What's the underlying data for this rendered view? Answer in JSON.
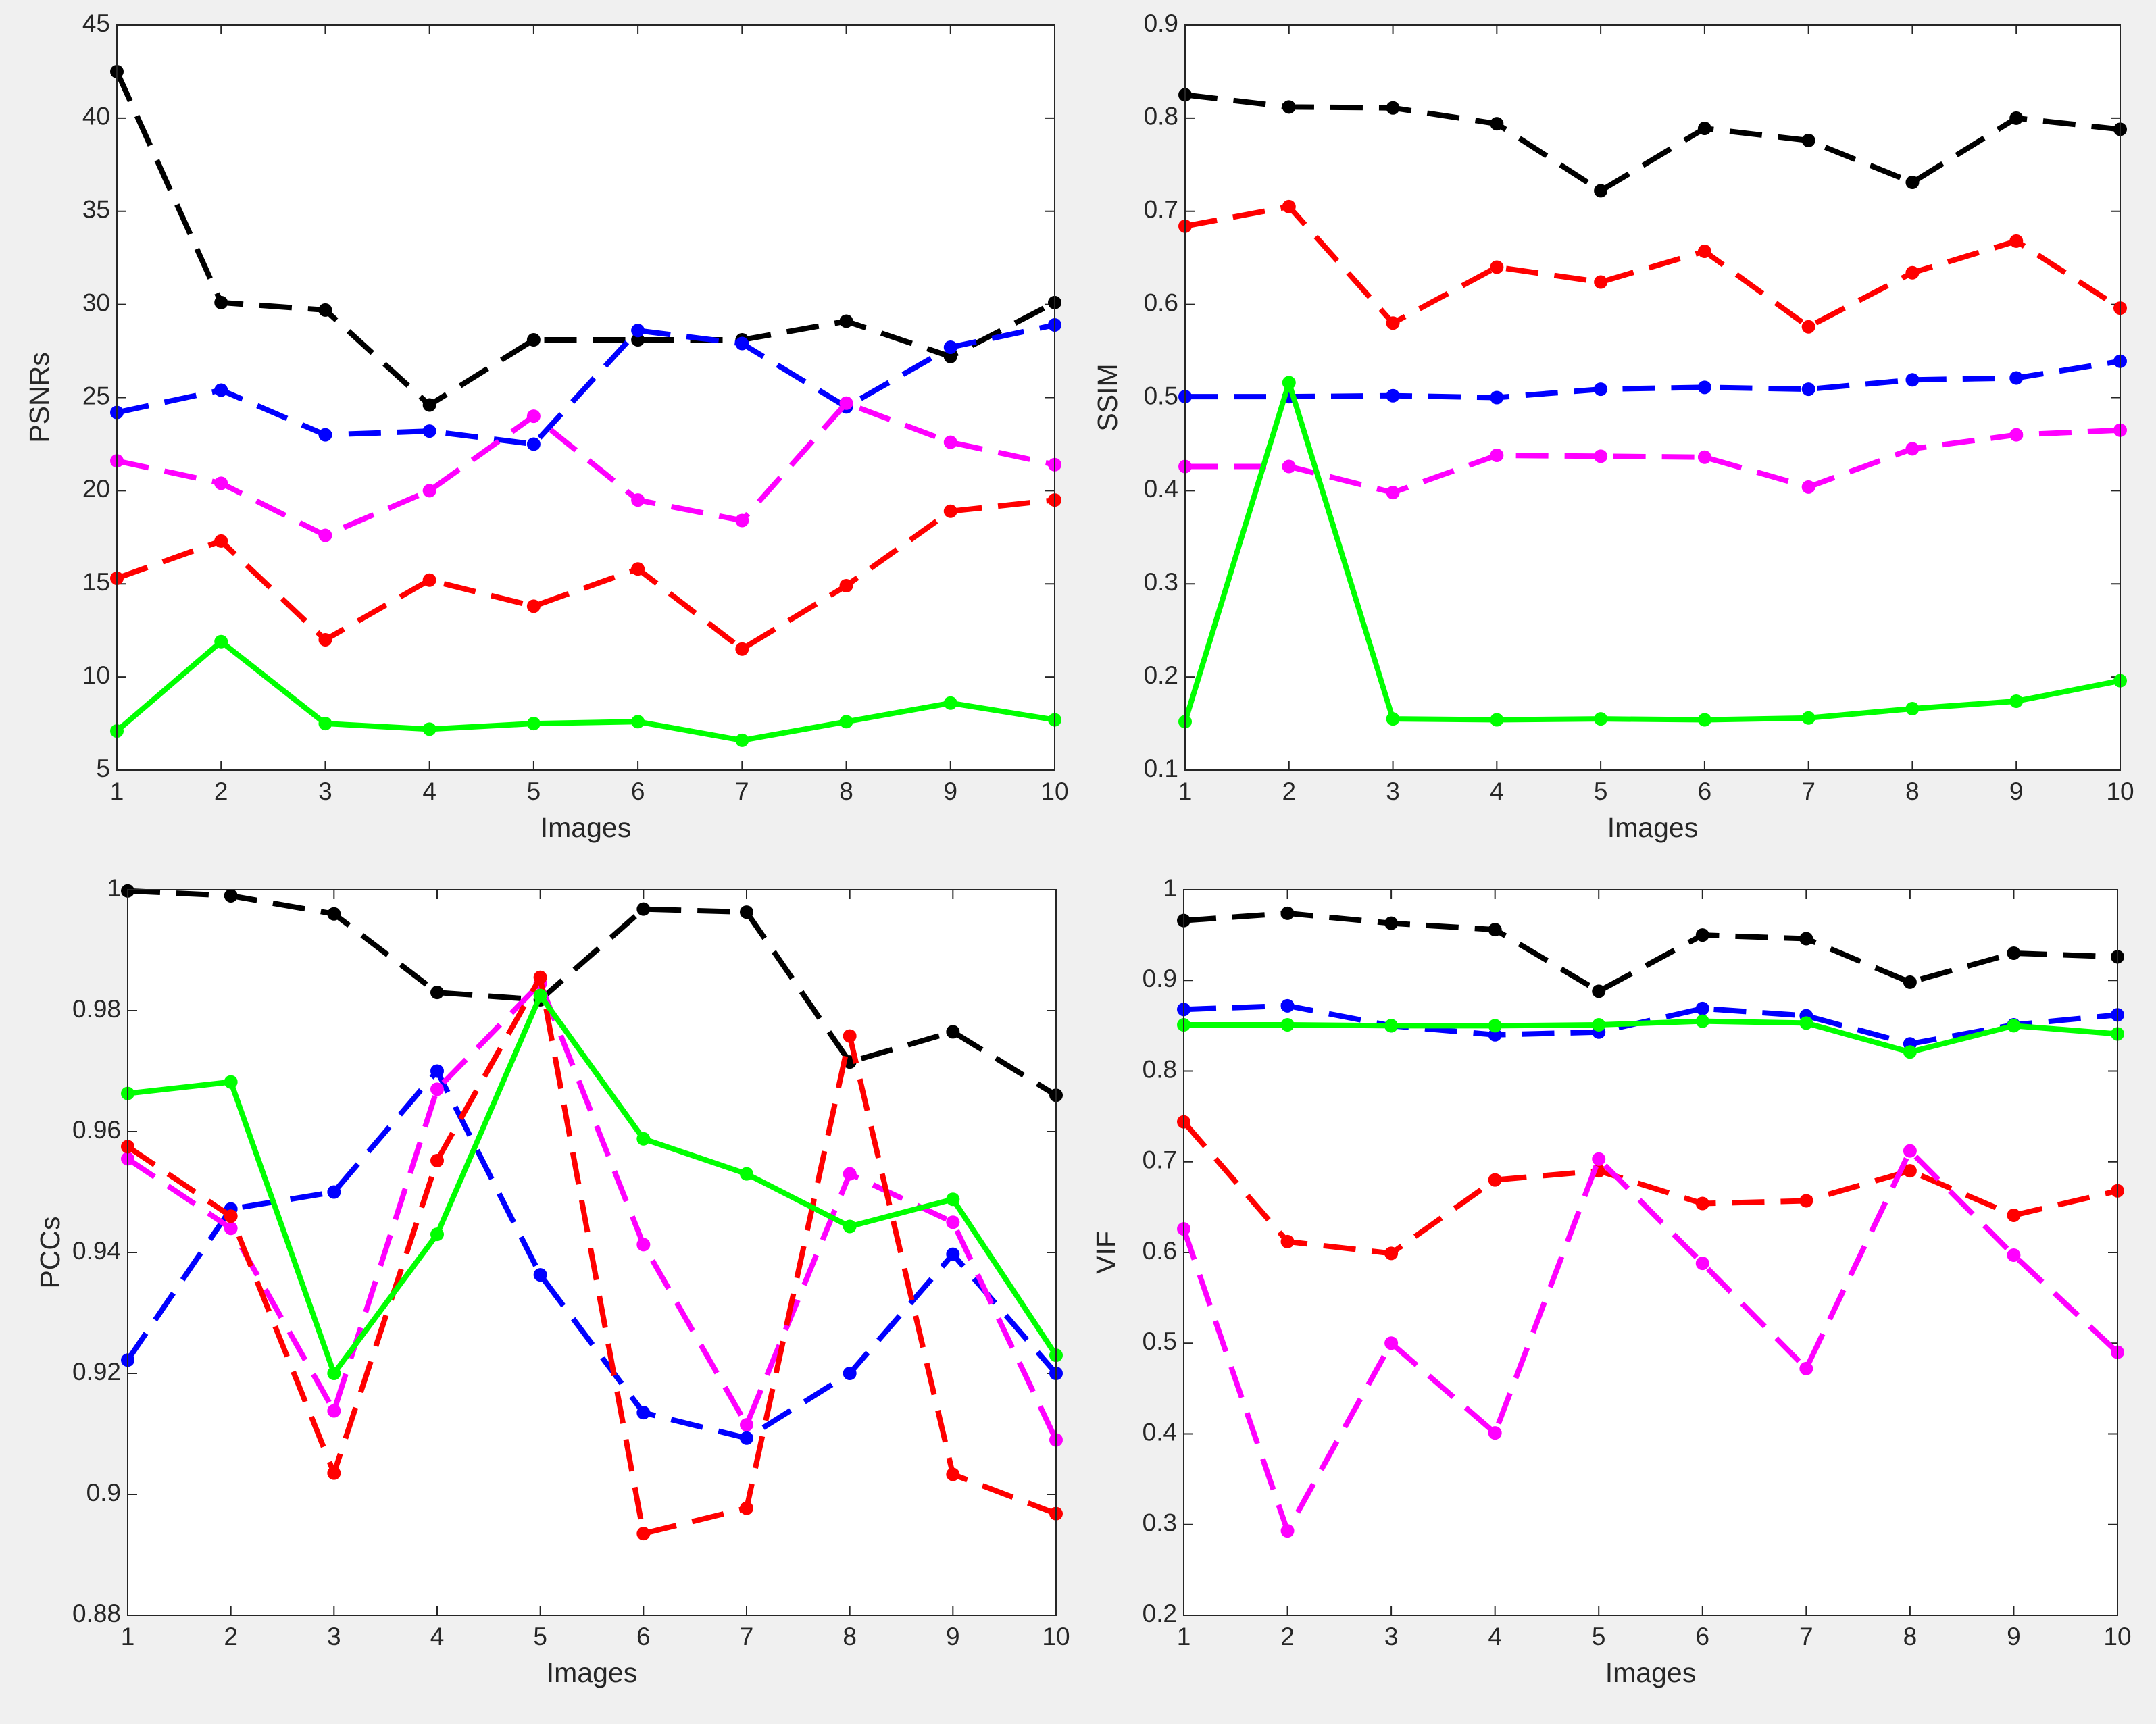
{
  "chart_data": [
    {
      "type": "line",
      "ylabel": "PSNRs",
      "xlabel": "Images",
      "x": [
        1,
        2,
        3,
        4,
        5,
        6,
        7,
        8,
        9,
        10
      ],
      "xlim": [
        1,
        10
      ],
      "xticks": [
        1,
        2,
        3,
        4,
        5,
        6,
        7,
        8,
        9,
        10
      ],
      "ylim": [
        5,
        45
      ],
      "yticks": [
        5,
        10,
        15,
        20,
        25,
        30,
        35,
        40,
        45
      ],
      "series": [
        {
          "color": "#000000",
          "linestyle": "dashed",
          "values": [
            42.5,
            30.1,
            29.7,
            24.6,
            28.1,
            28.1,
            28.1,
            29.1,
            27.2,
            30.1
          ]
        },
        {
          "color": "#0000ff",
          "linestyle": "dashed",
          "values": [
            24.2,
            25.4,
            23.0,
            23.2,
            22.5,
            28.6,
            27.9,
            24.5,
            27.7,
            28.9
          ]
        },
        {
          "color": "#ff00ff",
          "linestyle": "dashed",
          "values": [
            21.6,
            20.4,
            17.6,
            20.0,
            24.0,
            19.5,
            18.4,
            24.7,
            22.6,
            21.4
          ]
        },
        {
          "color": "#ff0000",
          "linestyle": "dashed",
          "values": [
            15.3,
            17.3,
            12.0,
            15.2,
            13.8,
            15.8,
            11.5,
            14.9,
            18.9,
            19.5
          ]
        },
        {
          "color": "#00ff00",
          "linestyle": "solid",
          "values": [
            7.1,
            11.9,
            7.5,
            7.2,
            7.5,
            7.6,
            6.6,
            7.6,
            8.6,
            7.7
          ]
        }
      ]
    },
    {
      "type": "line",
      "ylabel": "SSIM",
      "xlabel": "Images",
      "x": [
        1,
        2,
        3,
        4,
        5,
        6,
        7,
        8,
        9,
        10
      ],
      "xlim": [
        1,
        10
      ],
      "xticks": [
        1,
        2,
        3,
        4,
        5,
        6,
        7,
        8,
        9,
        10
      ],
      "ylim": [
        0.1,
        0.9
      ],
      "yticks": [
        0.1,
        0.2,
        0.3,
        0.4,
        0.5,
        0.6,
        0.7,
        0.8,
        0.9
      ],
      "series": [
        {
          "color": "#000000",
          "linestyle": "dashed",
          "values": [
            0.825,
            0.812,
            0.811,
            0.794,
            0.722,
            0.789,
            0.776,
            0.731,
            0.8,
            0.788
          ]
        },
        {
          "color": "#ff0000",
          "linestyle": "dashed",
          "values": [
            0.684,
            0.705,
            0.58,
            0.64,
            0.624,
            0.657,
            0.576,
            0.634,
            0.668,
            0.596
          ]
        },
        {
          "color": "#0000ff",
          "linestyle": "dashed",
          "values": [
            0.501,
            0.501,
            0.502,
            0.5,
            0.509,
            0.511,
            0.509,
            0.519,
            0.521,
            0.539
          ]
        },
        {
          "color": "#ff00ff",
          "linestyle": "dashed",
          "values": [
            0.426,
            0.426,
            0.398,
            0.438,
            0.437,
            0.436,
            0.404,
            0.445,
            0.46,
            0.465
          ]
        },
        {
          "color": "#00ff00",
          "linestyle": "solid",
          "values": [
            0.152,
            0.516,
            0.155,
            0.154,
            0.155,
            0.154,
            0.156,
            0.166,
            0.174,
            0.196
          ]
        }
      ]
    },
    {
      "type": "line",
      "ylabel": "PCCs",
      "xlabel": "Images",
      "x": [
        1,
        2,
        3,
        4,
        5,
        6,
        7,
        8,
        9,
        10
      ],
      "xlim": [
        1,
        10
      ],
      "xticks": [
        1,
        2,
        3,
        4,
        5,
        6,
        7,
        8,
        9,
        10
      ],
      "ylim": [
        0.88,
        1
      ],
      "yticks": [
        0.88,
        0.9,
        0.92,
        0.94,
        0.96,
        0.98,
        1
      ],
      "series": [
        {
          "color": "#000000",
          "linestyle": "dashed",
          "values": [
            0.9998,
            0.999,
            0.996,
            0.983,
            0.9818,
            0.9968,
            0.9963,
            0.9715,
            0.9765,
            0.966
          ]
        },
        {
          "color": "#0000ff",
          "linestyle": "dashed",
          "values": [
            0.9222,
            0.9472,
            0.95,
            0.97,
            0.9363,
            0.9135,
            0.9093,
            0.92,
            0.9397,
            0.92
          ]
        },
        {
          "color": "#ff00ff",
          "linestyle": "dashed",
          "values": [
            0.9555,
            0.944,
            0.9138,
            0.967,
            0.9845,
            0.9413,
            0.9115,
            0.953,
            0.945,
            0.909
          ]
        },
        {
          "color": "#ff0000",
          "linestyle": "dashed",
          "values": [
            0.9575,
            0.946,
            0.9035,
            0.9552,
            0.9855,
            0.8935,
            0.8977,
            0.9758,
            0.9033,
            0.8968
          ]
        },
        {
          "color": "#00ff00",
          "linestyle": "solid",
          "values": [
            0.9663,
            0.9682,
            0.92,
            0.943,
            0.9825,
            0.9588,
            0.953,
            0.9443,
            0.9488,
            0.923
          ]
        }
      ]
    },
    {
      "type": "line",
      "ylabel": "VIF",
      "xlabel": "Images",
      "x": [
        1,
        2,
        3,
        4,
        5,
        6,
        7,
        8,
        9,
        10
      ],
      "xlim": [
        1,
        10
      ],
      "xticks": [
        1,
        2,
        3,
        4,
        5,
        6,
        7,
        8,
        9,
        10
      ],
      "ylim": [
        0.2,
        1
      ],
      "yticks": [
        0.2,
        0.3,
        0.4,
        0.5,
        0.6,
        0.7,
        0.8,
        0.9,
        1
      ],
      "series": [
        {
          "color": "#000000",
          "linestyle": "dashed",
          "values": [
            0.966,
            0.974,
            0.963,
            0.956,
            0.888,
            0.95,
            0.946,
            0.898,
            0.93,
            0.926
          ]
        },
        {
          "color": "#0000ff",
          "linestyle": "dashed",
          "values": [
            0.868,
            0.872,
            0.85,
            0.84,
            0.843,
            0.869,
            0.861,
            0.83,
            0.851,
            0.862
          ]
        },
        {
          "color": "#00ff00",
          "linestyle": "solid",
          "values": [
            0.851,
            0.851,
            0.85,
            0.85,
            0.851,
            0.855,
            0.853,
            0.821,
            0.85,
            0.841
          ]
        },
        {
          "color": "#ff0000",
          "linestyle": "dashed",
          "values": [
            0.744,
            0.612,
            0.599,
            0.68,
            0.69,
            0.654,
            0.657,
            0.69,
            0.641,
            0.668
          ]
        },
        {
          "color": "#ff00ff",
          "linestyle": "dashed",
          "values": [
            0.626,
            0.293,
            0.5,
            0.401,
            0.703,
            0.588,
            0.472,
            0.712,
            0.597,
            0.49
          ]
        }
      ]
    }
  ]
}
